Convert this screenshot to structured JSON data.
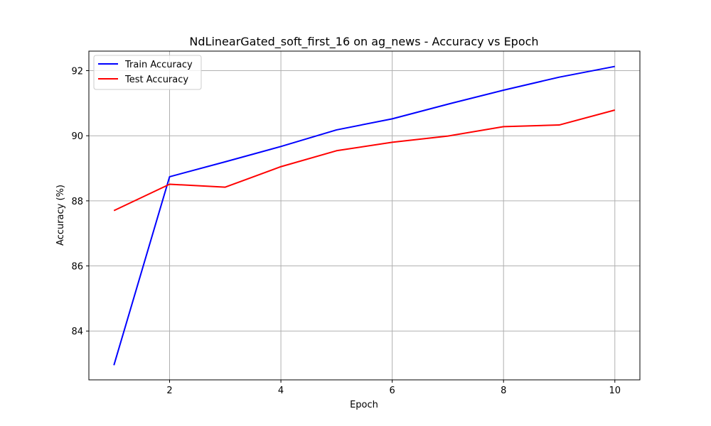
{
  "chart_data": {
    "type": "line",
    "title": "NdLinearGated_soft_first_16 on ag_news - Accuracy vs Epoch",
    "xlabel": "Epoch",
    "ylabel": "Accuracy (%)",
    "x": [
      1,
      2,
      3,
      4,
      5,
      6,
      7,
      8,
      9,
      10
    ],
    "xlim": [
      0.55,
      10.45
    ],
    "ylim": [
      82.5,
      92.6
    ],
    "xticks": [
      2,
      4,
      6,
      8,
      10
    ],
    "yticks": [
      84,
      86,
      88,
      90,
      92
    ],
    "grid": true,
    "legend_position": "top-left",
    "series": [
      {
        "name": "Train Accuracy",
        "color": "#0000ff",
        "values": [
          82.95,
          88.74,
          89.2,
          89.67,
          90.18,
          90.52,
          90.97,
          91.4,
          91.8,
          92.13
        ]
      },
      {
        "name": "Test Accuracy",
        "color": "#ff0000",
        "values": [
          87.7,
          88.51,
          88.42,
          89.05,
          89.54,
          89.8,
          89.99,
          90.28,
          90.33,
          90.79
        ]
      }
    ]
  }
}
